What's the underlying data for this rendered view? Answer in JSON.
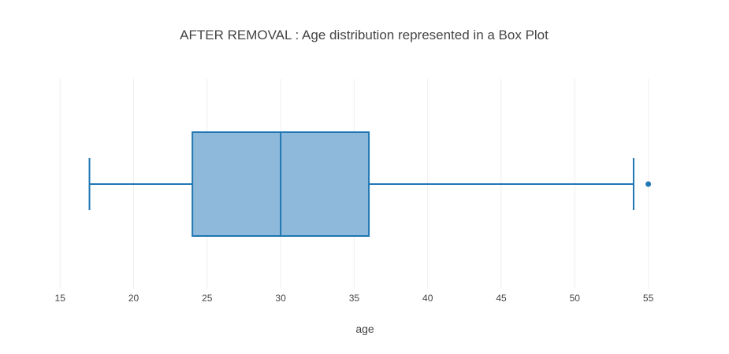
{
  "chart_data": {
    "type": "box",
    "title": "AFTER REMOVAL : Age distribution represented in a Box Plot",
    "xlabel": "age",
    "ylabel": "",
    "orientation": "horizontal",
    "xlim": [
      14.4,
      56.2
    ],
    "xticks": [
      15,
      20,
      25,
      30,
      35,
      40,
      45,
      50,
      55
    ],
    "xtick_labels": [
      "15",
      "20",
      "25",
      "30",
      "35",
      "40",
      "45",
      "50",
      "55"
    ],
    "grid": true,
    "legend": "none",
    "series": [
      {
        "min": 17,
        "q1": 24,
        "median": 30,
        "q3": 36,
        "max": 54,
        "outliers": [
          55
        ],
        "color": "#1f77b4",
        "fill": "#8fb9da"
      }
    ]
  }
}
